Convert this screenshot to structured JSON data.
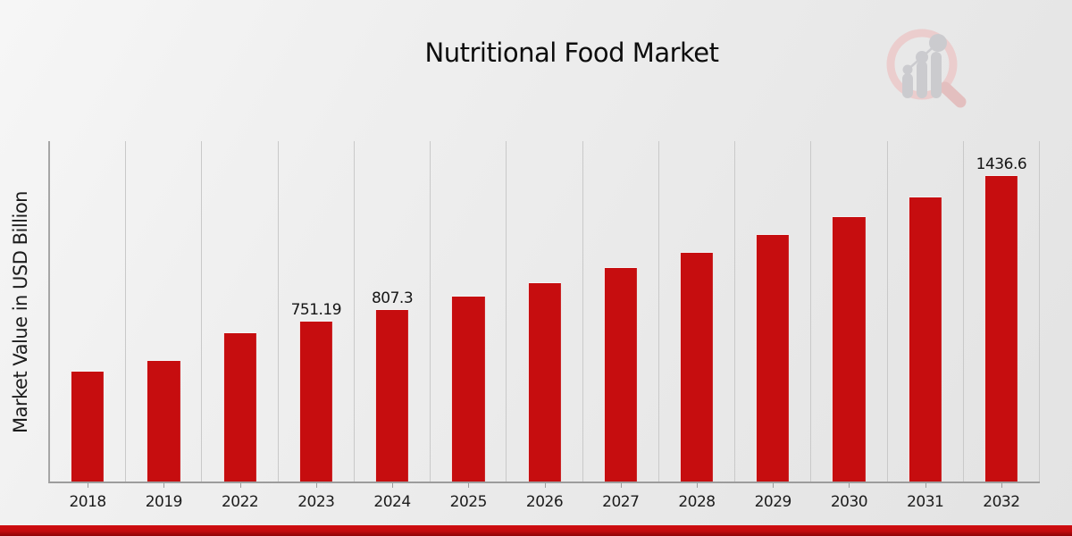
{
  "chart_data": {
    "type": "bar",
    "title": "Nutritional Food Market",
    "ylabel": "Market Value in USD Billion",
    "xlabel": "",
    "categories": [
      "2018",
      "2019",
      "2022",
      "2023",
      "2024",
      "2025",
      "2026",
      "2027",
      "2028",
      "2029",
      "2030",
      "2031",
      "2032"
    ],
    "values": [
      515,
      565,
      699,
      751.19,
      807.3,
      867.6,
      932.4,
      1002.1,
      1077,
      1157.4,
      1243.9,
      1336.8,
      1436.6
    ],
    "data_labels": [
      "",
      "",
      "",
      "751.19",
      "807.3",
      "",
      "",
      "",
      "",
      "",
      "",
      "",
      "1436.6"
    ],
    "ylim": [
      0,
      1600
    ],
    "grid": "vertical-only",
    "legend": "none",
    "bar_color": "#c60d0f"
  },
  "branding": {
    "logo_icon": "magnifier-bar-chart-logo"
  },
  "footer": {
    "stripe_color": "#c30b0e"
  }
}
